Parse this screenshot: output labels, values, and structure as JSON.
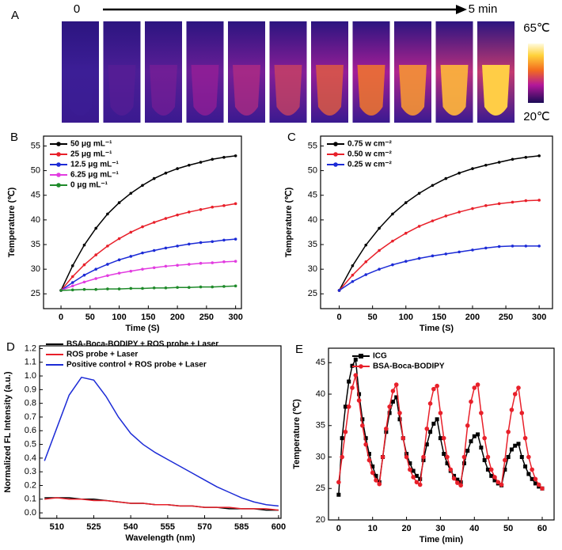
{
  "thermal_images": {
    "panel": "A",
    "start_label": "0",
    "end_label": "5 min",
    "scale_max": "65℃",
    "scale_min": "20℃"
  },
  "chart_data": [
    {
      "type": "line",
      "panel": "B",
      "x_label": "Time (S)",
      "y_label": "Temperature (℃)",
      "legend": "upper left",
      "marker": "circle",
      "x": [
        0,
        20,
        40,
        60,
        80,
        100,
        120,
        140,
        160,
        180,
        200,
        220,
        240,
        260,
        280,
        300
      ],
      "xlim": [
        -30,
        310
      ],
      "xticks": [
        0,
        50,
        100,
        150,
        200,
        250,
        300
      ],
      "ylim": [
        22,
        57
      ],
      "yticks": [
        25,
        30,
        35,
        40,
        45,
        50,
        55
      ],
      "series": [
        {
          "name": "50 μg mL⁻¹",
          "color": "#000000",
          "values": [
            25.7,
            30.7,
            34.9,
            38.3,
            41.2,
            43.5,
            45.4,
            47.0,
            48.4,
            49.5,
            50.4,
            51.1,
            51.7,
            52.3,
            52.7,
            53.0
          ]
        },
        {
          "name": "25 μg mL⁻¹",
          "color": "#e8202a",
          "values": [
            25.7,
            28.5,
            30.9,
            32.9,
            34.7,
            36.2,
            37.5,
            38.6,
            39.5,
            40.3,
            41.0,
            41.6,
            42.1,
            42.6,
            42.9,
            43.3
          ]
        },
        {
          "name": "12.5 μg mL⁻¹",
          "color": "#1c2bd6",
          "values": [
            25.7,
            27.3,
            28.8,
            30.0,
            31.0,
            31.9,
            32.6,
            33.3,
            33.8,
            34.3,
            34.7,
            35.1,
            35.4,
            35.6,
            35.9,
            36.1
          ]
        },
        {
          "name": "6.25 μg mL⁻¹",
          "color": "#e23ce0",
          "values": [
            25.7,
            26.6,
            27.4,
            28.1,
            28.7,
            29.2,
            29.6,
            30.0,
            30.3,
            30.6,
            30.8,
            31.0,
            31.2,
            31.3,
            31.5,
            31.6
          ]
        },
        {
          "name": "0 μg mL⁻¹",
          "color": "#1f8a2a",
          "values": [
            25.7,
            25.8,
            25.9,
            25.9,
            26.0,
            26.0,
            26.1,
            26.1,
            26.2,
            26.2,
            26.3,
            26.3,
            26.4,
            26.4,
            26.5,
            26.6
          ]
        }
      ]
    },
    {
      "type": "line",
      "panel": "C",
      "x_label": "Time (S)",
      "y_label": "Temperature (℃)",
      "legend": "upper left",
      "marker": "circle",
      "x": [
        0,
        20,
        40,
        60,
        80,
        100,
        120,
        140,
        160,
        180,
        200,
        220,
        240,
        260,
        280,
        300
      ],
      "xlim": [
        -28,
        320
      ],
      "xticks": [
        0,
        50,
        100,
        150,
        200,
        250,
        300
      ],
      "ylim": [
        22,
        57
      ],
      "yticks": [
        25,
        30,
        35,
        40,
        45,
        50,
        55
      ],
      "series": [
        {
          "name": "0.75 w cm⁻²",
          "color": "#000000",
          "values": [
            25.7,
            30.7,
            34.9,
            38.3,
            41.2,
            43.5,
            45.4,
            47.0,
            48.4,
            49.5,
            50.4,
            51.1,
            51.7,
            52.3,
            52.7,
            53.0
          ]
        },
        {
          "name": "0.50 w cm⁻²",
          "color": "#e8202a",
          "values": [
            25.7,
            28.8,
            31.5,
            33.8,
            35.7,
            37.3,
            38.7,
            39.8,
            40.8,
            41.6,
            42.3,
            42.9,
            43.3,
            43.6,
            43.9,
            44.0
          ]
        },
        {
          "name": "0.25 w cm⁻²",
          "color": "#1c2bd6",
          "values": [
            25.7,
            27.5,
            28.9,
            30.0,
            30.9,
            31.6,
            32.2,
            32.7,
            33.1,
            33.5,
            33.9,
            34.3,
            34.6,
            34.7,
            34.7,
            34.7
          ]
        }
      ]
    },
    {
      "type": "line",
      "panel": "D",
      "x_label": "Wavelength (nm)",
      "y_label": "Normalized FL Intensity (a.u.)",
      "legend": "upper left",
      "marker": "none",
      "x": [
        505,
        510,
        515,
        520,
        525,
        530,
        535,
        540,
        545,
        550,
        555,
        560,
        565,
        570,
        575,
        580,
        585,
        590,
        595,
        600
      ],
      "xlim": [
        503,
        601
      ],
      "xticks": [
        510,
        525,
        540,
        555,
        570,
        585,
        600
      ],
      "ylim": [
        -0.04,
        1.22
      ],
      "yticks": [
        {
          "value": 0,
          "label": "0.0"
        },
        0.1,
        0.2,
        0.3,
        0.4,
        0.5,
        0.6,
        0.7,
        0.8,
        0.9,
        {
          "value": 1,
          "label": "1.0"
        },
        1.1,
        1.2
      ],
      "series": [
        {
          "name": "BSA-Boca-BODIPY + ROS probe + Laser",
          "color": "#000000",
          "values": [
            0.11,
            0.11,
            0.11,
            0.1,
            0.1,
            0.09,
            0.08,
            0.07,
            0.07,
            0.06,
            0.06,
            0.05,
            0.05,
            0.04,
            0.04,
            0.03,
            0.03,
            0.03,
            0.02,
            0.02
          ]
        },
        {
          "name": "ROS probe + Laser",
          "color": "#e8202a",
          "values": [
            0.1,
            0.11,
            0.1,
            0.1,
            0.09,
            0.09,
            0.08,
            0.07,
            0.07,
            0.06,
            0.06,
            0.05,
            0.05,
            0.04,
            0.04,
            0.04,
            0.03,
            0.03,
            0.03,
            0.02
          ]
        },
        {
          "name": "Positive control + ROS probe + Laser",
          "color": "#1c2bd6",
          "values": [
            0.38,
            0.62,
            0.86,
            0.99,
            0.97,
            0.85,
            0.7,
            0.58,
            0.5,
            0.44,
            0.39,
            0.34,
            0.29,
            0.24,
            0.19,
            0.15,
            0.11,
            0.08,
            0.06,
            0.05
          ]
        }
      ]
    },
    {
      "type": "line",
      "panel": "E",
      "x_label": "Time (min)",
      "y_label": "Temperature (℃)",
      "legend": "upper left",
      "x": [
        0,
        1,
        2,
        3,
        4,
        5,
        6,
        7,
        8,
        9,
        10,
        11,
        12,
        13,
        14,
        15,
        16,
        17,
        18,
        19,
        20,
        21,
        22,
        23,
        24,
        25,
        26,
        27,
        28,
        29,
        30,
        31,
        32,
        33,
        34,
        35,
        36,
        37,
        38,
        39,
        40,
        41,
        42,
        43,
        44,
        45,
        46,
        47,
        48,
        49,
        50,
        51,
        52,
        53,
        54,
        55,
        56,
        57,
        58,
        59,
        60
      ],
      "xlim": [
        -3,
        63.5
      ],
      "xticks": [
        0,
        10,
        20,
        30,
        40,
        50,
        60
      ],
      "ylim": [
        20,
        47.3
      ],
      "yticks": [
        20,
        25,
        30,
        35,
        40,
        45
      ],
      "series": [
        {
          "name": "ICG",
          "color": "#000000",
          "marker": "square",
          "values": [
            24,
            33,
            38,
            42,
            44.5,
            45.5,
            40,
            36,
            33,
            30.5,
            28.5,
            27,
            26,
            30,
            34,
            37,
            38.8,
            39.5,
            36,
            33,
            30.5,
            29,
            27.8,
            27,
            26.5,
            29.5,
            32,
            34,
            35.3,
            36,
            33,
            30.5,
            29,
            27.8,
            27,
            26.4,
            26,
            29,
            31,
            32.5,
            33.3,
            33.6,
            31.5,
            29.5,
            28,
            27,
            26.3,
            25.8,
            25.5,
            28,
            30,
            31.2,
            31.8,
            32.1,
            30,
            28.5,
            27.3,
            26.5,
            25.8,
            25.3,
            25
          ]
        },
        {
          "name": "BSA-Boca-BODIPY",
          "color": "#e8202a",
          "marker": "circle",
          "values": [
            26,
            30,
            34,
            38,
            41,
            43,
            39,
            35,
            32,
            29.5,
            27.5,
            26.3,
            25.7,
            30,
            34.5,
            38,
            40.5,
            41.5,
            37,
            33,
            30,
            28,
            26.8,
            26,
            25.6,
            30,
            34.5,
            38.5,
            40.8,
            41.3,
            37,
            33,
            30,
            28,
            26.6,
            25.9,
            25.5,
            30,
            35,
            38.8,
            41,
            41.5,
            37,
            33,
            30,
            28,
            26.8,
            26,
            25.6,
            29.5,
            34,
            37.5,
            40,
            41,
            37,
            33,
            30,
            28,
            26.5,
            25.6,
            25
          ]
        }
      ]
    }
  ]
}
